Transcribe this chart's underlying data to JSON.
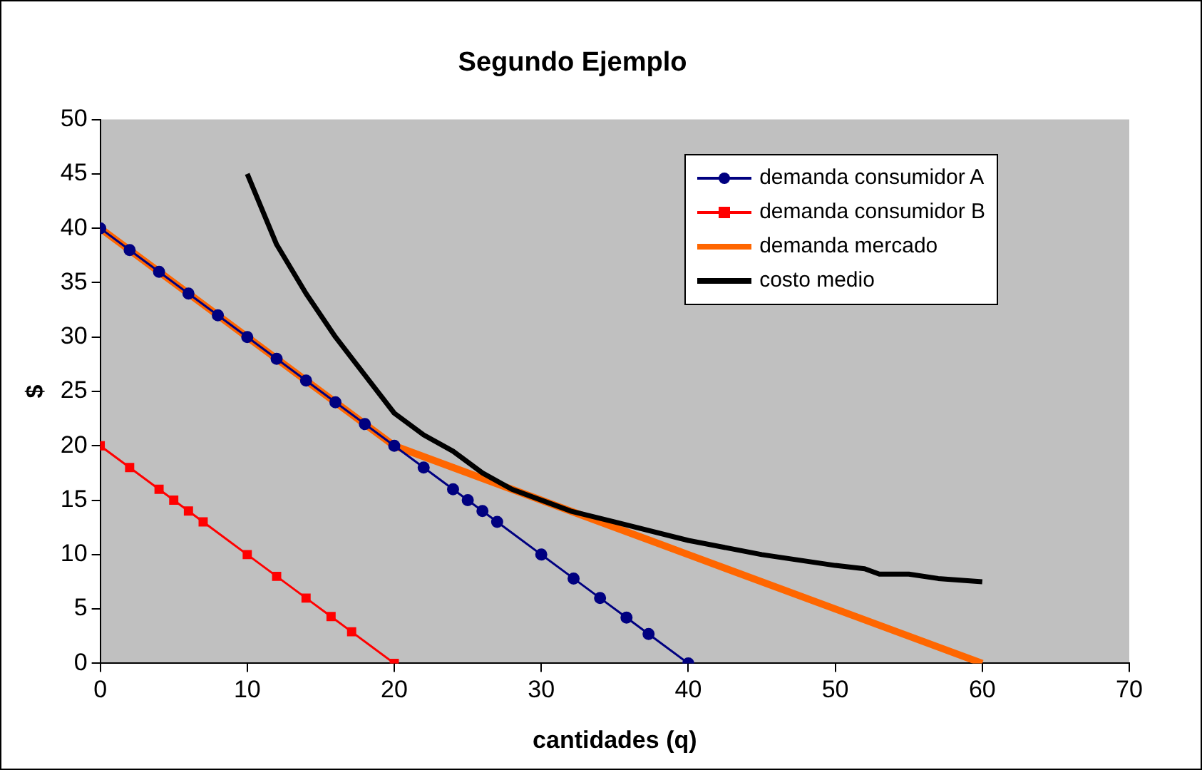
{
  "chart_data": {
    "type": "line",
    "title": "Segundo Ejemplo",
    "xlabel": "cantidades (q)",
    "ylabel": "$",
    "xlim": [
      0,
      70
    ],
    "xticks": [
      0,
      10,
      20,
      30,
      40,
      50,
      60,
      70
    ],
    "ylim": [
      0,
      50
    ],
    "yticks": [
      0,
      5,
      10,
      15,
      20,
      25,
      30,
      35,
      40,
      45,
      50
    ],
    "legend": "top right",
    "series": [
      {
        "name": "demanda consumidor A",
        "color": "#000080",
        "marker": "circle",
        "x": [
          0,
          2,
          4,
          6,
          8,
          10,
          12,
          14,
          16,
          18,
          20,
          22,
          24,
          25,
          26,
          27,
          30,
          32.2,
          34,
          35.8,
          37.3,
          40
        ],
        "values": [
          40,
          38,
          36,
          34,
          32,
          30,
          28,
          26,
          24,
          22,
          20,
          18,
          16,
          15,
          14,
          13,
          10,
          7.8,
          6,
          4.2,
          2.7,
          0
        ]
      },
      {
        "name": "demanda consumidor B",
        "color": "#ff0000",
        "marker": "square",
        "x": [
          0,
          2,
          4,
          5,
          6,
          7,
          10,
          12,
          14,
          15.7,
          17.1,
          20
        ],
        "values": [
          20,
          18,
          16,
          15,
          14,
          13,
          10,
          8,
          6,
          4.3,
          2.9,
          0
        ]
      },
      {
        "name": "demanda mercado",
        "color": "#ff6600",
        "marker": "none",
        "x": [
          0,
          20,
          30,
          40,
          50,
          60
        ],
        "values": [
          40,
          20,
          15,
          10,
          5,
          0
        ]
      },
      {
        "name": "costo medio",
        "color": "#000000",
        "marker": "none",
        "x": [
          10,
          12,
          14,
          16,
          18,
          20,
          22,
          24,
          26,
          28,
          30,
          32,
          35,
          40,
          45,
          50,
          52,
          53,
          55,
          57,
          60
        ],
        "values": [
          45,
          38.5,
          34,
          30,
          26.5,
          23,
          21,
          19.5,
          17.5,
          16,
          15,
          14,
          13,
          11.3,
          10,
          9,
          8.7,
          8.2,
          8.2,
          7.8,
          7.5
        ]
      }
    ]
  }
}
